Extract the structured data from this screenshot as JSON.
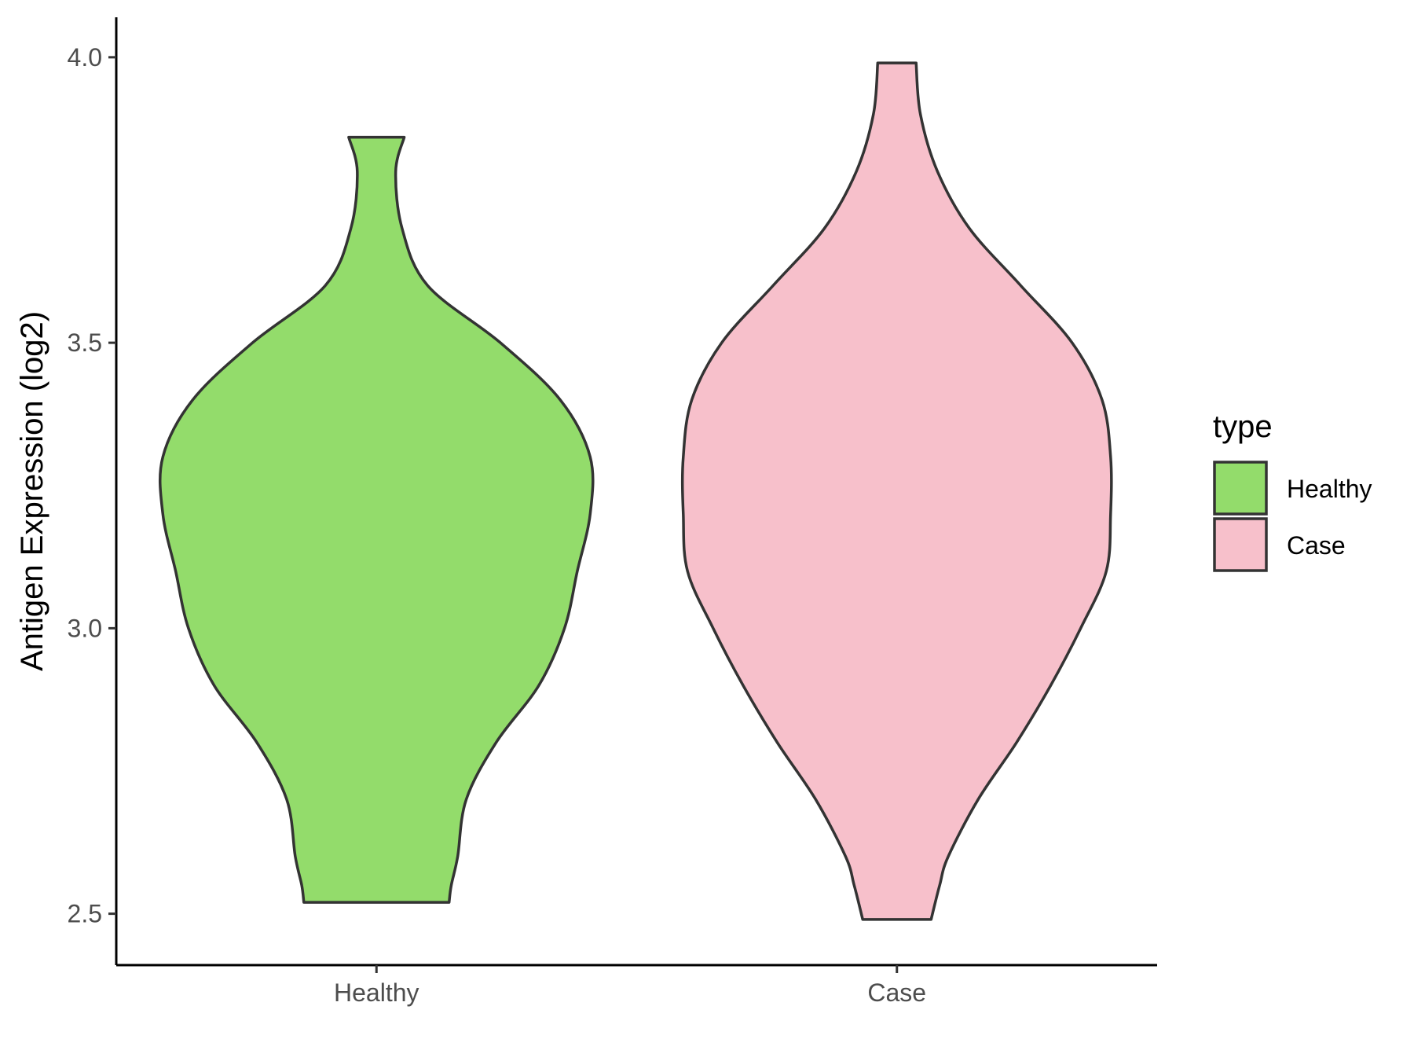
{
  "chart_data": {
    "type": "violin",
    "title": "",
    "xlabel": "",
    "ylabel": "Antigen Expression (log2)",
    "ylim": [
      2.41,
      4.07
    ],
    "y_ticks": [
      "2.5",
      "3.0",
      "3.5",
      "4.0"
    ],
    "y_tick_values": [
      2.5,
      3.0,
      3.5,
      4.0
    ],
    "grid": false,
    "categories": [
      "Healthy",
      "Case"
    ],
    "legend": {
      "title": "type",
      "position": "right",
      "items": [
        {
          "label": "Healthy",
          "color": "#93DC6B"
        },
        {
          "label": "Case",
          "color": "#F7C0CB"
        }
      ]
    },
    "series": [
      {
        "name": "Healthy",
        "color": "#93DC6B",
        "min": 2.52,
        "max": 3.86,
        "density": [
          [
            2.52,
            0.34
          ],
          [
            2.55,
            0.35
          ],
          [
            2.6,
            0.38
          ],
          [
            2.7,
            0.42
          ],
          [
            2.8,
            0.56
          ],
          [
            2.9,
            0.76
          ],
          [
            3.0,
            0.88
          ],
          [
            3.1,
            0.94
          ],
          [
            3.2,
            1.0
          ],
          [
            3.3,
            1.0
          ],
          [
            3.4,
            0.86
          ],
          [
            3.5,
            0.58
          ],
          [
            3.6,
            0.24
          ],
          [
            3.7,
            0.12
          ],
          [
            3.8,
            0.09
          ],
          [
            3.86,
            0.13
          ]
        ]
      },
      {
        "name": "Case",
        "color": "#F7C0CB",
        "min": 2.49,
        "max": 3.99,
        "density": [
          [
            2.49,
            0.16
          ],
          [
            2.55,
            0.2
          ],
          [
            2.6,
            0.24
          ],
          [
            2.7,
            0.38
          ],
          [
            2.8,
            0.56
          ],
          [
            2.9,
            0.72
          ],
          [
            3.0,
            0.86
          ],
          [
            3.1,
            0.98
          ],
          [
            3.2,
            1.0
          ],
          [
            3.3,
            1.0
          ],
          [
            3.4,
            0.96
          ],
          [
            3.5,
            0.82
          ],
          [
            3.6,
            0.58
          ],
          [
            3.7,
            0.34
          ],
          [
            3.8,
            0.19
          ],
          [
            3.9,
            0.11
          ],
          [
            3.99,
            0.09
          ]
        ]
      }
    ]
  }
}
